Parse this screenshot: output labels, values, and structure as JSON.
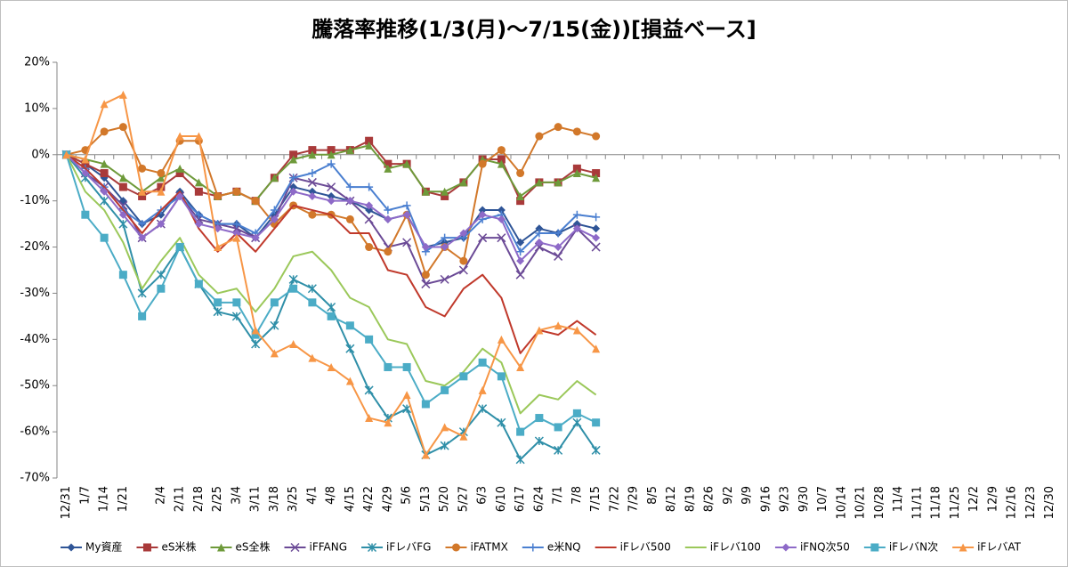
{
  "chart_data": {
    "type": "line",
    "title": "騰落率推移(1/3(月)～7/15(金))[損益ベース]",
    "categories": [
      "12/31",
      "1/7",
      "1/14",
      "1/21",
      null,
      "2/4",
      "2/11",
      "2/18",
      "2/25",
      "3/4",
      "3/11",
      "3/18",
      "3/25",
      "4/1",
      "4/8",
      "4/15",
      "4/22",
      "4/29",
      "5/6",
      "5/13",
      "5/20",
      "5/27",
      "6/3",
      "6/10",
      "6/17",
      "6/24",
      "7/1",
      "7/8",
      "7/15",
      "7/22",
      "7/29",
      "8/5",
      "8/12",
      "8/19",
      "8/26",
      "9/2",
      "9/9",
      "9/16",
      "9/23",
      "9/30",
      "10/7",
      "10/14",
      "10/21",
      "10/28",
      "11/4",
      "11/11",
      "11/18",
      "11/25",
      "12/2",
      "12/9",
      "12/16",
      "12/23",
      "12/30"
    ],
    "ylim": [
      -70,
      20
    ],
    "yticks": [
      {
        "value": -70,
        "label": "-70%"
      },
      {
        "value": -60,
        "label": "-60%"
      },
      {
        "value": -50,
        "label": "-50%"
      },
      {
        "value": -40,
        "label": "-40%"
      },
      {
        "value": -30,
        "label": "-30%"
      },
      {
        "value": -20,
        "label": "-20%"
      },
      {
        "value": -10,
        "label": "-10%"
      },
      {
        "value": 0,
        "label": "0%"
      },
      {
        "value": 10,
        "label": "10%"
      },
      {
        "value": 20,
        "label": "20%"
      }
    ],
    "grid": false,
    "legend": "bottom",
    "series": [
      {
        "name": "My資産",
        "color": "#2f5597",
        "marker": "diamond",
        "values": [
          0,
          -2,
          -5,
          -10,
          -15,
          -13,
          -8,
          -13,
          -15,
          -15,
          -18,
          -13,
          -7,
          -8,
          -9,
          -10,
          -12,
          -14,
          -13,
          -20,
          -19,
          -18,
          -12,
          -12,
          -19,
          -16,
          -17,
          -15,
          -16,
          null,
          null,
          null,
          null,
          null,
          null,
          null,
          null,
          null,
          null,
          null,
          null,
          null,
          null,
          null,
          null,
          null,
          null,
          null,
          null,
          null,
          null,
          null,
          null
        ]
      },
      {
        "name": "eS米株",
        "color": "#a93a3a",
        "marker": "square",
        "values": [
          0,
          -2,
          -4,
          -7,
          -9,
          -7,
          -4,
          -8,
          -9,
          -8,
          -10,
          -5,
          0,
          1,
          1,
          1,
          3,
          -2,
          -2,
          -8,
          -9,
          -6,
          -1,
          -1,
          -10,
          -6,
          -6,
          -3,
          -4,
          null,
          null,
          null,
          null,
          null,
          null,
          null,
          null,
          null,
          null,
          null,
          null,
          null,
          null,
          null,
          null,
          null,
          null,
          null,
          null,
          null,
          null,
          null,
          null
        ]
      },
      {
        "name": "eS全株",
        "color": "#6e9a3a",
        "marker": "triangle",
        "values": [
          0,
          -1,
          -2,
          -5,
          -8,
          -5,
          -3,
          -6,
          -9,
          -8,
          -10,
          -5,
          -1,
          0,
          0,
          1,
          2,
          -3,
          -2,
          -8,
          -8,
          -6,
          -1,
          -2,
          -9,
          -6,
          -6,
          -4,
          -5,
          null,
          null,
          null,
          null,
          null,
          null,
          null,
          null,
          null,
          null,
          null,
          null,
          null,
          null,
          null,
          null,
          null,
          null,
          null,
          null,
          null,
          null,
          null,
          null
        ]
      },
      {
        "name": "iFFANG",
        "color": "#6b4a96",
        "marker": "x",
        "values": [
          0,
          -4,
          -7,
          -11,
          -18,
          -15,
          -9,
          -14,
          -15,
          -16,
          -18,
          -14,
          -5,
          -6,
          -7,
          -10,
          -14,
          -20,
          -19,
          -28,
          -27,
          -25,
          -18,
          -18,
          -26,
          -20,
          -22,
          -16,
          -20,
          null,
          null,
          null,
          null,
          null,
          null,
          null,
          null,
          null,
          null,
          null,
          null,
          null,
          null,
          null,
          null,
          null,
          null,
          null,
          null,
          null,
          null,
          null,
          null
        ]
      },
      {
        "name": "iFレバFG",
        "color": "#2f8fa8",
        "marker": "star",
        "values": [
          0,
          -5,
          -10,
          -15,
          -30,
          -26,
          -20,
          -28,
          -34,
          -35,
          -41,
          -37,
          -27,
          -29,
          -33,
          -42,
          -51,
          -57,
          -55,
          -65,
          -63,
          -60,
          -55,
          -58,
          -66,
          -62,
          -64,
          -58,
          -64,
          null,
          null,
          null,
          null,
          null,
          null,
          null,
          null,
          null,
          null,
          null,
          null,
          null,
          null,
          null,
          null,
          null,
          null,
          null,
          null,
          null,
          null,
          null,
          null
        ]
      },
      {
        "name": "iFATMX",
        "color": "#d2782a",
        "marker": "circle",
        "values": [
          0,
          1,
          5,
          6,
          -3,
          -4,
          3,
          3,
          -9,
          -8,
          -10,
          -15,
          -11,
          -13,
          -13,
          -14,
          -20,
          -21,
          -13,
          -26,
          -20,
          -23,
          -2,
          1,
          -4,
          4,
          6,
          5,
          4,
          null,
          null,
          null,
          null,
          null,
          null,
          null,
          null,
          null,
          null,
          null,
          null,
          null,
          null,
          null,
          null,
          null,
          null,
          null,
          null,
          null,
          null,
          null,
          null
        ]
      },
      {
        "name": "e米NQ",
        "color": "#4a7fd0",
        "marker": "plus",
        "values": [
          0,
          -3,
          -7,
          -12,
          -15,
          -12,
          -9,
          -13,
          -15,
          -15,
          -17,
          -12,
          -5,
          -4,
          -2,
          -7,
          -7,
          -12,
          -11,
          -21,
          -18,
          -18,
          -14,
          -13,
          -21,
          -17,
          -17,
          -13,
          -13.5,
          null,
          null,
          null,
          null,
          null,
          null,
          null,
          null,
          null,
          null,
          null,
          null,
          null,
          null,
          null,
          null,
          null,
          null,
          null,
          null,
          null,
          null,
          null,
          null
        ]
      },
      {
        "name": "iFレバ500",
        "color": "#c0392b",
        "marker": "none",
        "values": [
          0,
          -3,
          -7,
          -12,
          -17,
          -12,
          -8,
          -16,
          -21,
          -17,
          -21,
          -16,
          -11,
          -12,
          -13,
          -17,
          -17,
          -25,
          -26,
          -33,
          -35,
          -29,
          -26,
          -31,
          -43,
          -38,
          -39,
          -36,
          -39,
          null,
          null,
          null,
          null,
          null,
          null,
          null,
          null,
          null,
          null,
          null,
          null,
          null,
          null,
          null,
          null,
          null,
          null,
          null,
          null,
          null,
          null,
          null,
          null
        ]
      },
      {
        "name": "iFレバ100",
        "color": "#9bc85a",
        "marker": "none",
        "values": [
          0,
          -8,
          -12,
          -19,
          -29,
          -23,
          -18,
          -26,
          -30,
          -29,
          -34,
          -29,
          -22,
          -21,
          -25,
          -31,
          -33,
          -40,
          -41,
          -49,
          -50,
          -47,
          -42,
          -45,
          -56,
          -52,
          -53,
          -49,
          -52,
          null,
          null,
          null,
          null,
          null,
          null,
          null,
          null,
          null,
          null,
          null,
          null,
          null,
          null,
          null,
          null,
          null,
          null,
          null,
          null,
          null,
          null,
          null,
          null
        ]
      },
      {
        "name": "iFNQ次50",
        "color": "#8e6ac8",
        "marker": "diamond",
        "values": [
          0,
          -4,
          -8,
          -13,
          -18,
          -15,
          -9,
          -15,
          -16,
          -17,
          -18,
          -14,
          -8,
          -9,
          -10,
          -10,
          -11,
          -14,
          -13,
          -20,
          -20,
          -17,
          -13,
          -14,
          -23,
          -19,
          -20,
          -16,
          -18,
          null,
          null,
          null,
          null,
          null,
          null,
          null,
          null,
          null,
          null,
          null,
          null,
          null,
          null,
          null,
          null,
          null,
          null,
          null,
          null,
          null,
          null,
          null,
          null
        ]
      },
      {
        "name": "iFレバN次",
        "color": "#4bacc6",
        "marker": "square",
        "values": [
          0,
          -13,
          -18,
          -26,
          -35,
          -29,
          -20,
          -28,
          -32,
          -32,
          -39,
          -32,
          -29,
          -32,
          -35,
          -37,
          -40,
          -46,
          -46,
          -54,
          -51,
          -48,
          -45,
          -48,
          -60,
          -57,
          -59,
          -56,
          -58,
          null,
          null,
          null,
          null,
          null,
          null,
          null,
          null,
          null,
          null,
          null,
          null,
          null,
          null,
          null,
          null,
          null,
          null,
          null,
          null,
          null,
          null,
          null,
          null
        ]
      },
      {
        "name": "iFレバAT",
        "color": "#f79646",
        "marker": "triangle",
        "values": [
          0,
          -1,
          11,
          13,
          -8,
          -8,
          4,
          4,
          -20,
          -18,
          -38,
          -43,
          -41,
          -44,
          -46,
          -49,
          -57,
          -58,
          -52,
          -65,
          -59,
          -61,
          -51,
          -40,
          -46,
          -38,
          -37,
          -38,
          -42,
          null,
          null,
          null,
          null,
          null,
          null,
          null,
          null,
          null,
          null,
          null,
          null,
          null,
          null,
          null,
          null,
          null,
          null,
          null,
          null,
          null,
          null,
          null,
          null
        ]
      }
    ]
  }
}
